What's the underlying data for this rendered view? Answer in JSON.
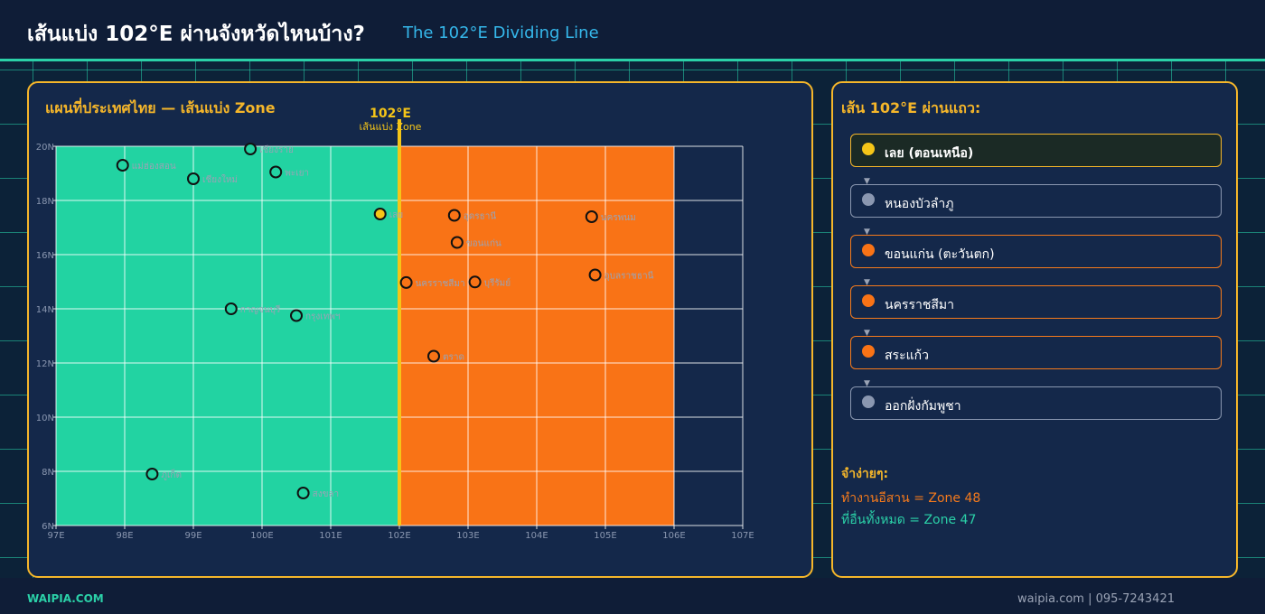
{
  "header": {
    "title_th": "เส้นแบ่ง 102°E ผ่านจังหวัดไหนบ้าง?",
    "title_en": "The 102°E Dividing Line"
  },
  "map": {
    "title": "แผนที่ประเทศไทย — เส้นแบ่ง Zone",
    "divider_label": "102°E",
    "divider_sublabel": "เส้นแบ่ง Zone"
  },
  "chart_data": {
    "type": "scatter",
    "title": "แผนที่ประเทศไทย — เส้นแบ่ง Zone",
    "xlim": [
      97,
      107
    ],
    "ylim": [
      6,
      20
    ],
    "x_ticks": [
      97,
      98,
      99,
      100,
      101,
      102,
      103,
      104,
      105,
      106,
      107
    ],
    "x_tick_labels": [
      "97E",
      "98E",
      "99E",
      "100E",
      "101E",
      "102E",
      "103E",
      "104E",
      "105E",
      "106E",
      "107E"
    ],
    "y_ticks": [
      6,
      8,
      10,
      12,
      14,
      16,
      18,
      20
    ],
    "y_tick_labels": [
      "6N",
      "8N",
      "10N",
      "12N",
      "14N",
      "16N",
      "18N",
      "20N"
    ],
    "grid": true,
    "zones": [
      {
        "name": "Zone 47",
        "x_from": 97,
        "x_to": 102,
        "color": "#22d3a2"
      },
      {
        "name": "Zone 48",
        "x_from": 102,
        "x_to": 106,
        "color": "#f97316"
      }
    ],
    "divider_x": 102,
    "points": [
      {
        "label": "แม่ฮ่องสอน",
        "lon": 97.97,
        "lat": 19.3,
        "color": "#22d3a2"
      },
      {
        "label": "เชียงราย",
        "lon": 99.83,
        "lat": 19.9,
        "color": "#22d3a2"
      },
      {
        "label": "เชียงใหม่",
        "lon": 99.0,
        "lat": 18.8,
        "color": "#22d3a2"
      },
      {
        "label": "พะเยา",
        "lon": 100.2,
        "lat": 19.05,
        "color": "#22d3a2"
      },
      {
        "label": "เลย",
        "lon": 101.72,
        "lat": 17.5,
        "color": "#f5c518"
      },
      {
        "label": "อุดรธานี",
        "lon": 102.8,
        "lat": 17.45,
        "color": "#f97316"
      },
      {
        "label": "นครพนม",
        "lon": 104.8,
        "lat": 17.4,
        "color": "#f97316"
      },
      {
        "label": "ขอนแก่น",
        "lon": 102.84,
        "lat": 16.45,
        "color": "#f97316"
      },
      {
        "label": "นครราชสีมา",
        "lon": 102.1,
        "lat": 14.97,
        "color": "#f97316"
      },
      {
        "label": "บุรีรัมย์",
        "lon": 103.1,
        "lat": 14.99,
        "color": "#f97316"
      },
      {
        "label": "อุบลราชธานี",
        "lon": 104.85,
        "lat": 15.25,
        "color": "#f97316"
      },
      {
        "label": "กาญจนบุรี",
        "lon": 99.55,
        "lat": 14.0,
        "color": "#22d3a2"
      },
      {
        "label": "กรุงเทพฯ",
        "lon": 100.5,
        "lat": 13.75,
        "color": "#22d3a2"
      },
      {
        "label": "ตราด",
        "lon": 102.5,
        "lat": 12.25,
        "color": "#f97316"
      },
      {
        "label": "ภูเก็ต",
        "lon": 98.4,
        "lat": 7.9,
        "color": "#22d3a2"
      },
      {
        "label": "สงขลา",
        "lon": 100.6,
        "lat": 7.2,
        "color": "#22d3a2"
      }
    ]
  },
  "sidebar": {
    "title": "เส้น 102°E ผ่านแถว:",
    "steps": [
      {
        "label": "เลย (ตอนเหนือ)",
        "color": "#f5c518"
      },
      {
        "label": "หนองบัวลำภู",
        "color": "#8a97b0"
      },
      {
        "label": "ขอนแก่น (ตะวันตก)",
        "color": "#f97316"
      },
      {
        "label": "นครราชสีมา",
        "color": "#f97316"
      },
      {
        "label": "สระแก้ว",
        "color": "#f97316"
      },
      {
        "label": "ออกฝั่งกัมพูชา",
        "color": "#8a97b0"
      }
    ],
    "arrow_glyph": "▼",
    "memo_title": "จำง่ายๆ:",
    "memo_line1": "ทำงานอีสาน = Zone 48",
    "memo_line2": "ที่อื่นทั้งหมด = Zone 47"
  },
  "footer": {
    "brand": "WAIPIA.COM",
    "contact": "waipia.com | 095-7243421"
  }
}
